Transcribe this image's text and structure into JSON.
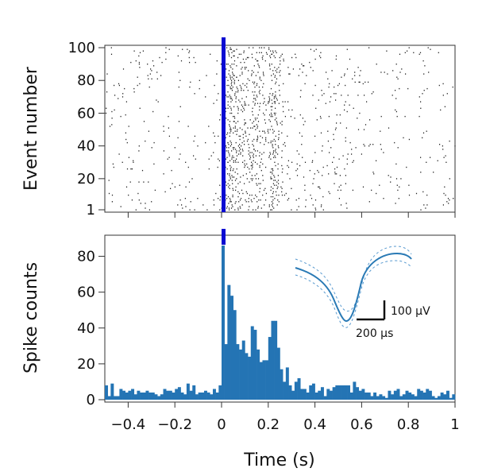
{
  "chart_data": [
    {
      "type": "scatter",
      "panel": "raster",
      "ylabel": "Event number",
      "xlim": [
        -0.5,
        1.0
      ],
      "ylim": [
        1,
        100
      ],
      "yticks": [
        1,
        20,
        40,
        60,
        80,
        100
      ],
      "ytick_labels": [
        "1",
        "20",
        "40",
        "60",
        "80",
        "100"
      ],
      "xtick_labels_shown": false,
      "stimulus_marker_x": 0,
      "stimulus_marker_color": "#0a0ad2",
      "dot_color": "#222222",
      "n_events": 100,
      "baseline_rate_hz": 3,
      "peak_window_s": [
        0.0,
        0.3
      ],
      "grid": false
    },
    {
      "type": "bar",
      "panel": "histogram",
      "xlabel": "Time (s)",
      "ylabel": "Spike counts",
      "xlim": [
        -0.5,
        1.0
      ],
      "ylim": [
        0,
        90
      ],
      "bin_width": 0.0125,
      "bin_start": -0.5,
      "xticks": [
        -0.4,
        -0.2,
        0,
        0.2,
        0.4,
        0.6,
        0.8,
        1
      ],
      "xtick_labels": [
        "−0.4",
        "−0.2",
        "0",
        "0.2",
        "0.4",
        "0.6",
        "0.8",
        "1"
      ],
      "yticks": [
        0,
        20,
        40,
        60,
        80
      ],
      "ytick_labels": [
        "0",
        "20",
        "40",
        "60",
        "80"
      ],
      "bar_color": "#2474b4",
      "stimulus_marker_x": 0,
      "stimulus_marker_color": "#0a0ad2",
      "values": [
        8,
        2,
        9,
        2,
        2,
        6,
        5,
        4,
        5,
        6,
        3,
        5,
        4,
        4,
        5,
        4,
        4,
        3,
        2,
        3,
        6,
        5,
        5,
        4,
        6,
        7,
        4,
        3,
        9,
        5,
        8,
        3,
        4,
        4,
        5,
        4,
        3,
        6,
        4,
        8,
        86,
        31,
        64,
        58,
        50,
        31,
        28,
        33,
        26,
        24,
        41,
        39,
        28,
        21,
        22,
        22,
        35,
        44,
        44,
        29,
        17,
        10,
        18,
        8,
        5,
        10,
        12,
        6,
        6,
        4,
        8,
        9,
        4,
        5,
        7,
        2,
        6,
        5,
        7,
        8,
        8,
        8,
        8,
        8,
        4,
        10,
        7,
        5,
        6,
        4,
        4,
        2,
        4,
        2,
        3,
        2,
        1,
        5,
        3,
        5,
        6,
        2,
        3,
        5,
        4,
        3,
        2,
        6,
        5,
        4,
        6,
        5,
        2,
        1,
        2,
        4,
        3,
        5,
        1,
        3
      ],
      "inset": {
        "type": "line",
        "waveform_color": "#2a7ab5",
        "envelope_color": "#5a9bd0",
        "scale_bar_voltage_label": "100 µV",
        "scale_bar_time_label": "200 µs"
      },
      "grid": false
    }
  ]
}
